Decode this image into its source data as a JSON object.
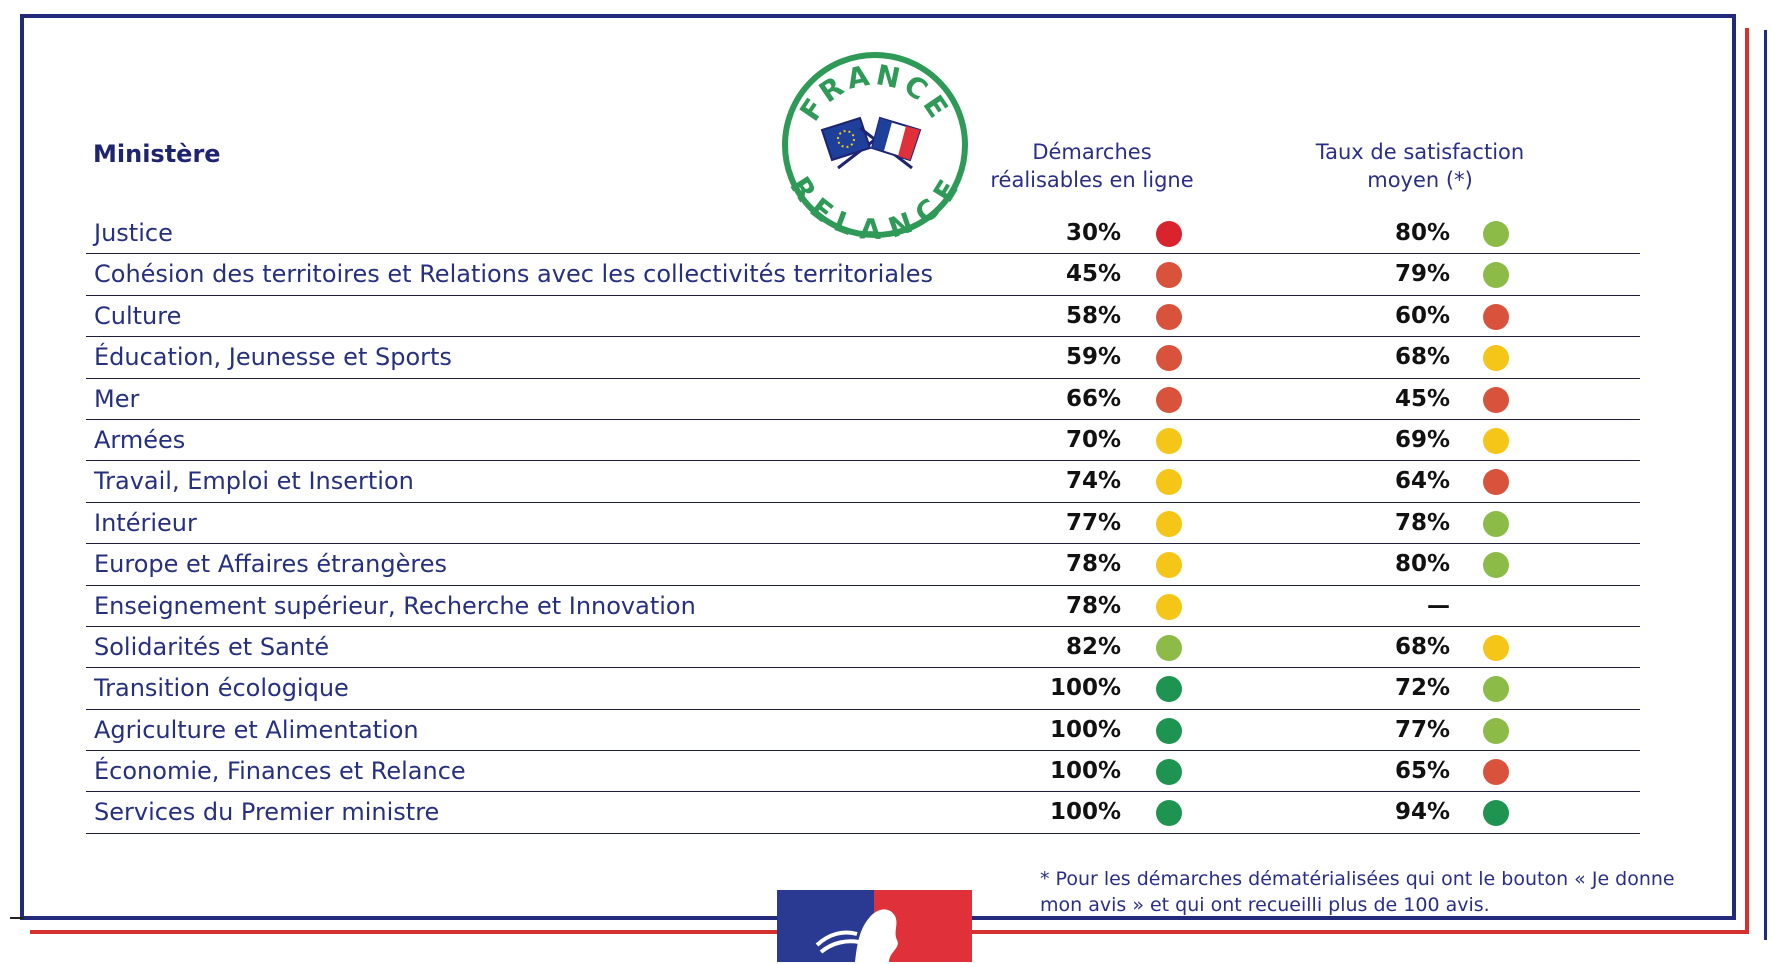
{
  "logo": {
    "top_text": "FRANCE",
    "bottom_text": "RELANCE",
    "ring_color": "#2f9a58"
  },
  "header": {
    "ministere": "Ministère",
    "col_demarches_line1": "Démarches",
    "col_demarches_line2": "réalisables en ligne",
    "col_satisfaction_line1": "Taux de satisfaction",
    "col_satisfaction_line2": "moyen (*)"
  },
  "status_colors": {
    "red": "#d9232d",
    "orange_red": "#d9533c",
    "yellow": "#f5c518",
    "light_green": "#8cbc47",
    "green": "#1e9450"
  },
  "rows": [
    {
      "name": "Justice",
      "demarches": "30%",
      "demarches_color": "red",
      "satisfaction": "80%",
      "satisfaction_color": "light_green"
    },
    {
      "name": "Cohésion des territoires et Relations avec les collectivités territoriales",
      "demarches": "45%",
      "demarches_color": "orange_red",
      "satisfaction": "79%",
      "satisfaction_color": "light_green"
    },
    {
      "name": "Culture",
      "demarches": "58%",
      "demarches_color": "orange_red",
      "satisfaction": "60%",
      "satisfaction_color": "orange_red"
    },
    {
      "name": "Éducation, Jeunesse et Sports",
      "demarches": "59%",
      "demarches_color": "orange_red",
      "satisfaction": "68%",
      "satisfaction_color": "yellow"
    },
    {
      "name": "Mer",
      "demarches": "66%",
      "demarches_color": "orange_red",
      "satisfaction": "45%",
      "satisfaction_color": "orange_red"
    },
    {
      "name": "Armées",
      "demarches": "70%",
      "demarches_color": "yellow",
      "satisfaction": "69%",
      "satisfaction_color": "yellow"
    },
    {
      "name": "Travail, Emploi et Insertion",
      "demarches": "74%",
      "demarches_color": "yellow",
      "satisfaction": "64%",
      "satisfaction_color": "orange_red"
    },
    {
      "name": "Intérieur",
      "demarches": "77%",
      "demarches_color": "yellow",
      "satisfaction": "78%",
      "satisfaction_color": "light_green"
    },
    {
      "name": "Europe et Affaires étrangères",
      "demarches": "78%",
      "demarches_color": "yellow",
      "satisfaction": "80%",
      "satisfaction_color": "light_green"
    },
    {
      "name": "Enseignement supérieur, Recherche et Innovation",
      "demarches": "78%",
      "demarches_color": "yellow",
      "satisfaction": "—",
      "satisfaction_color": null
    },
    {
      "name": "Solidarités et Santé",
      "demarches": "82%",
      "demarches_color": "light_green",
      "satisfaction": "68%",
      "satisfaction_color": "yellow"
    },
    {
      "name": "Transition écologique",
      "demarches": "100%",
      "demarches_color": "green",
      "satisfaction": "72%",
      "satisfaction_color": "light_green"
    },
    {
      "name": "Agriculture et Alimentation",
      "demarches": "100%",
      "demarches_color": "green",
      "satisfaction": "77%",
      "satisfaction_color": "light_green"
    },
    {
      "name": "Économie, Finances et Relance",
      "demarches": "100%",
      "demarches_color": "green",
      "satisfaction": "65%",
      "satisfaction_color": "orange_red"
    },
    {
      "name": "Services du Premier ministre",
      "demarches": "100%",
      "demarches_color": "green",
      "satisfaction": "94%",
      "satisfaction_color": "green"
    }
  ],
  "footnote": {
    "line1": "* Pour les démarches dématérialisées qui ont le bouton « Je donne",
    "line2": "mon avis » et qui ont recueilli plus de 100 avis."
  },
  "marianne": {
    "blue": "#2a3a92",
    "red": "#e0303a"
  }
}
